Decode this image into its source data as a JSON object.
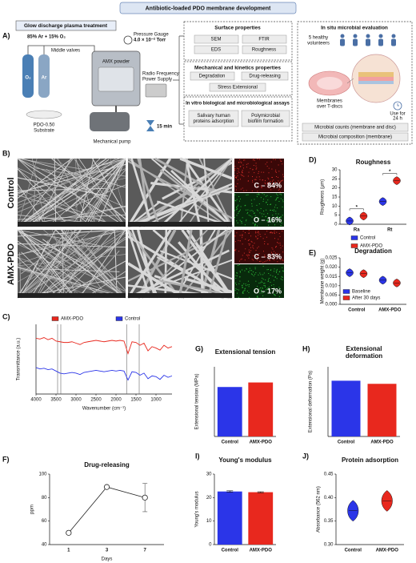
{
  "title": "Antibiotic-loaded PDO membrane development",
  "panel_labels": [
    "A)",
    "B)",
    "C)",
    "D)",
    "E)",
    "F)",
    "G)",
    "H)",
    "I)",
    "J)"
  ],
  "panel_a": {
    "plasma": {
      "title": "Glow discharge plasma treatment",
      "gas_mix": "85% Ar + 15% O₂",
      "valves": "Middle valves",
      "gauge": "Pressure Gauge",
      "pressure": "4.0 × 10⁻² Torr",
      "o2": "O₂",
      "ar": "Ar",
      "powder": "AMX powder",
      "rf": [
        "Radio Frequency",
        "Power Supply"
      ],
      "substrate": [
        "PDO-0.50",
        "Substrate"
      ],
      "pump": "Mechanical pump",
      "time": "15 min"
    },
    "assays": [
      {
        "title": "Surface properties",
        "items": [
          "SEM",
          "FTIR",
          "EDS",
          "Roughness"
        ]
      },
      {
        "title": "Mechanical and kinetics properties",
        "items": [
          "Degradation",
          "Drug-releasing",
          "Stress Extensional"
        ]
      },
      {
        "title": "In vitro biological and microbiological assays",
        "items": [
          [
            "Salivary human",
            "proteins adsorption"
          ],
          [
            "Polymicrobial",
            "biofilm formation"
          ]
        ]
      }
    ],
    "in_situ": {
      "title": "In situ microbial evaluation",
      "volunteers": [
        "5 healthy",
        "volunteers"
      ],
      "membranes": [
        "Membranes",
        "over T-discs"
      ],
      "use": [
        "Use for",
        "24 h"
      ],
      "outcomes": [
        "Microbial counts (membrane and disc)",
        "Microbial composition (membrane)"
      ]
    }
  },
  "panel_b": {
    "rows": [
      "Control",
      "AMX-PDO"
    ],
    "eds": [
      [
        "C – 84%",
        "O – 16%"
      ],
      [
        "C – 83%",
        "O – 17%"
      ]
    ]
  },
  "chart_data": [
    {
      "type": "line",
      "xlabel": "Wavenumber (cm⁻¹)",
      "ylabel": "Transmittance (a.u.)",
      "legend": "top",
      "x": [
        4000,
        3900,
        3800,
        3700,
        3600,
        3500,
        3400,
        3300,
        3200,
        3100,
        3000,
        2900,
        2800,
        2700,
        2600,
        2500,
        2400,
        2300,
        2200,
        2100,
        2000,
        1900,
        1800,
        1700,
        1600,
        1500,
        1400,
        1300,
        1200,
        1100,
        1000,
        900,
        800,
        700,
        600
      ],
      "xlim": [
        4000,
        600
      ],
      "xticks": [
        4000,
        3500,
        3000,
        2500,
        2000,
        1500,
        1000
      ],
      "ylim": [
        0,
        1
      ],
      "reference_lines": [
        3460,
        3380,
        1735,
        1420
      ],
      "series": [
        {
          "name": "AMX-PDO",
          "color": "#e8281e",
          "values": [
            0.8,
            0.79,
            0.81,
            0.78,
            0.8,
            0.76,
            0.75,
            0.74,
            0.74,
            0.75,
            0.73,
            0.71,
            0.74,
            0.75,
            0.76,
            0.77,
            0.76,
            0.75,
            0.76,
            0.77,
            0.76,
            0.77,
            0.76,
            0.58,
            0.75,
            0.74,
            0.7,
            0.73,
            0.62,
            0.68,
            0.66,
            0.63,
            0.7,
            0.66,
            0.68
          ]
        },
        {
          "name": "Control",
          "color": "#2b35e8",
          "values": [
            0.38,
            0.36,
            0.37,
            0.35,
            0.36,
            0.33,
            0.3,
            0.29,
            0.3,
            0.31,
            0.3,
            0.28,
            0.31,
            0.32,
            0.33,
            0.34,
            0.33,
            0.32,
            0.33,
            0.34,
            0.33,
            0.34,
            0.33,
            0.2,
            0.32,
            0.31,
            0.27,
            0.3,
            0.22,
            0.26,
            0.25,
            0.21,
            0.27,
            0.24,
            0.26
          ]
        }
      ]
    },
    {
      "type": "violin",
      "title": "Roughness",
      "ylabel": "Roughness (µm)",
      "legend": "bottom",
      "categories": [
        "Ra",
        "Rt"
      ],
      "ylim": [
        0,
        30
      ],
      "yticks": [
        0,
        5,
        10,
        15,
        20,
        25,
        30
      ],
      "annotations": [
        "*",
        "*"
      ],
      "series": [
        {
          "name": "Control",
          "color": "#2b35e8",
          "values": [
            1.8,
            12.5
          ]
        },
        {
          "name": "AMX-PDO",
          "color": "#e8281e",
          "values": [
            4.5,
            24
          ]
        }
      ]
    },
    {
      "type": "violin",
      "title": "Degradation",
      "ylabel": "Membrane weight (g)",
      "legend": "lower left",
      "categories": [
        "Control",
        "AMX-PDO"
      ],
      "ylim": [
        0,
        0.025
      ],
      "yticks": [
        {
          "value": 0,
          "label": "0.000"
        },
        0.005,
        {
          "value": 0.01,
          "label": "0.010"
        },
        0.015,
        {
          "value": 0.02,
          "label": "0.020"
        },
        0.025
      ],
      "series": [
        {
          "name": "Baseline",
          "color": "#2b35e8",
          "values": [
            0.017,
            0.013
          ]
        },
        {
          "name": "After 30 days",
          "color": "#e8281e",
          "values": [
            0.0165,
            0.0115
          ]
        }
      ]
    },
    {
      "type": "line",
      "title": "Drug-releasing",
      "xlabel": "Days",
      "ylabel": "ppm",
      "categories": [
        "1",
        "3",
        "7"
      ],
      "values": [
        50,
        89,
        80
      ],
      "errors": [
        0,
        0,
        12
      ],
      "color": "#222222",
      "ylim": [
        40,
        100
      ],
      "yticks": [
        40,
        60,
        80,
        100
      ]
    },
    {
      "type": "bar",
      "title": "Extensional tension",
      "ylabel": "Extensional tension (MPa)",
      "categories": [
        "Control",
        "AMX-PDO"
      ],
      "values": [
        1.42,
        1.55
      ],
      "colors": [
        "#2b35e8",
        "#e8281e"
      ],
      "ylim": [
        0,
        2
      ]
    },
    {
      "type": "bar",
      "title": [
        "Extensional",
        "deformation"
      ],
      "ylabel": "Extensional deformation (Pa)",
      "categories": [
        "Control",
        "AMX-PDO"
      ],
      "values": [
        72,
        68
      ],
      "colors": [
        "#2b35e8",
        "#e8281e"
      ],
      "ylim": [
        0,
        90
      ]
    },
    {
      "type": "bar",
      "title": "Young's modulus",
      "ylabel": "Young's modulus",
      "categories": [
        "Control",
        "AMX-PDO"
      ],
      "values": [
        22.6,
        22.3
      ],
      "errors": [
        0.3,
        0.2
      ],
      "colors": [
        "#2b35e8",
        "#e8281e"
      ],
      "ylim": [
        0,
        30
      ],
      "yticks": [
        0,
        10,
        20,
        30
      ]
    },
    {
      "type": "violin",
      "title": "Protein adsorption",
      "ylabel": "Absorbance (562 nm)",
      "categories": [
        "Control",
        "AMX-PDO"
      ],
      "values": [
        0.372,
        0.393
      ],
      "colors": [
        "#2b35e8",
        "#e8281e"
      ],
      "ylim": [
        0.3,
        0.45
      ],
      "yticks": [
        {
          "value": 0.3,
          "label": "0.30"
        },
        0.35,
        {
          "value": 0.4,
          "label": "0.40"
        },
        0.45
      ]
    }
  ]
}
